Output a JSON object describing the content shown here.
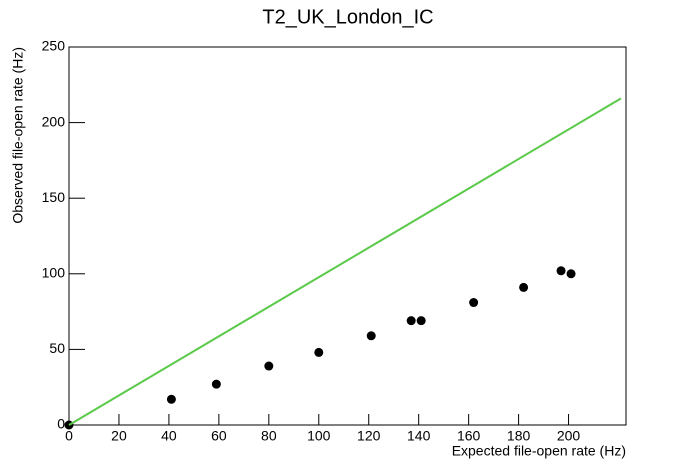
{
  "chart_data": {
    "type": "scatter",
    "title": "T2_UK_London_IC",
    "x_label": "Expected file-open rate (Hz)",
    "y_label": "Observed file-open rate (Hz)",
    "xlim": [
      0,
      223
    ],
    "xticks": [
      0,
      20,
      40,
      60,
      80,
      100,
      120,
      140,
      160,
      180,
      200
    ],
    "ylim": [
      0,
      250
    ],
    "yticks": [
      0,
      50,
      100,
      150,
      200,
      250
    ],
    "series": [
      {
        "type": "scatter",
        "color": "#000000",
        "x": [
          0,
          41,
          59,
          80,
          100,
          121,
          137,
          141,
          162,
          182,
          197,
          201
        ],
        "values": [
          0,
          17,
          27,
          39,
          48,
          59,
          69,
          69,
          81,
          91,
          102,
          100
        ]
      },
      {
        "type": "line",
        "color": "#5bc94a",
        "x": [
          0,
          221
        ],
        "values": [
          0,
          216
        ]
      }
    ]
  }
}
